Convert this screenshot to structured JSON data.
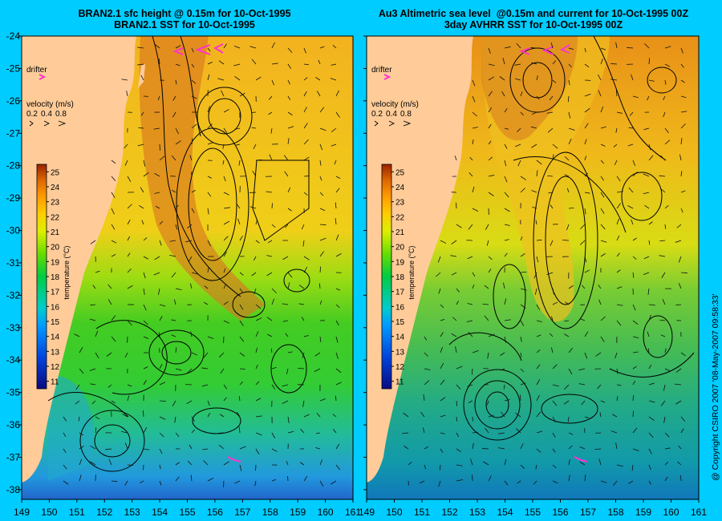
{
  "colors": {
    "background": "#00ccff",
    "land": "#ffcc99",
    "contour": "#000000",
    "drifter": "#ff33cc"
  },
  "panels": [
    {
      "id": "left",
      "title_line1": "BRAN2.1 sfc height @ 0.15m for 10-Oct-1995",
      "title_line2": "BRAN2.1 SST for 10-Oct-1995"
    },
    {
      "id": "right",
      "title_line1": "Au3 Altimetric sea level  @0.15m and current for 10-Oct-1995 00Z",
      "title_line2": "3day AVHRR SST for 10-Oct-1995 00Z"
    }
  ],
  "legend": {
    "drifter_label": "drifter",
    "velocity_label": "velocity (m/s)",
    "velocity_values": [
      "0.2",
      "0.4",
      "0.8"
    ],
    "colorbar_label": "temperature (°C)",
    "colorbar_ticks": [
      11,
      12,
      13,
      14,
      15,
      16,
      17,
      18,
      19,
      20,
      21,
      22,
      23,
      24,
      25
    ]
  },
  "axes": {
    "lat_ticks": [
      -24,
      -25,
      -26,
      -27,
      -28,
      -29,
      -30,
      -31,
      -32,
      -33,
      -34,
      -35,
      -36,
      -37,
      -38
    ],
    "lon_ticks_left": [
      149,
      150,
      151,
      152,
      153,
      154,
      155,
      156,
      157,
      158,
      159,
      160,
      161
    ],
    "lon_ticks_right": [
      149,
      150,
      151,
      152,
      153,
      154,
      155,
      156,
      157,
      158,
      159,
      160,
      161
    ],
    "lon_range": [
      149,
      161
    ],
    "lat_range": [
      -24,
      -38.3
    ]
  },
  "copyright": "@ Copyright CSIRO 2007 '08-May-2007 09:58:33'"
}
